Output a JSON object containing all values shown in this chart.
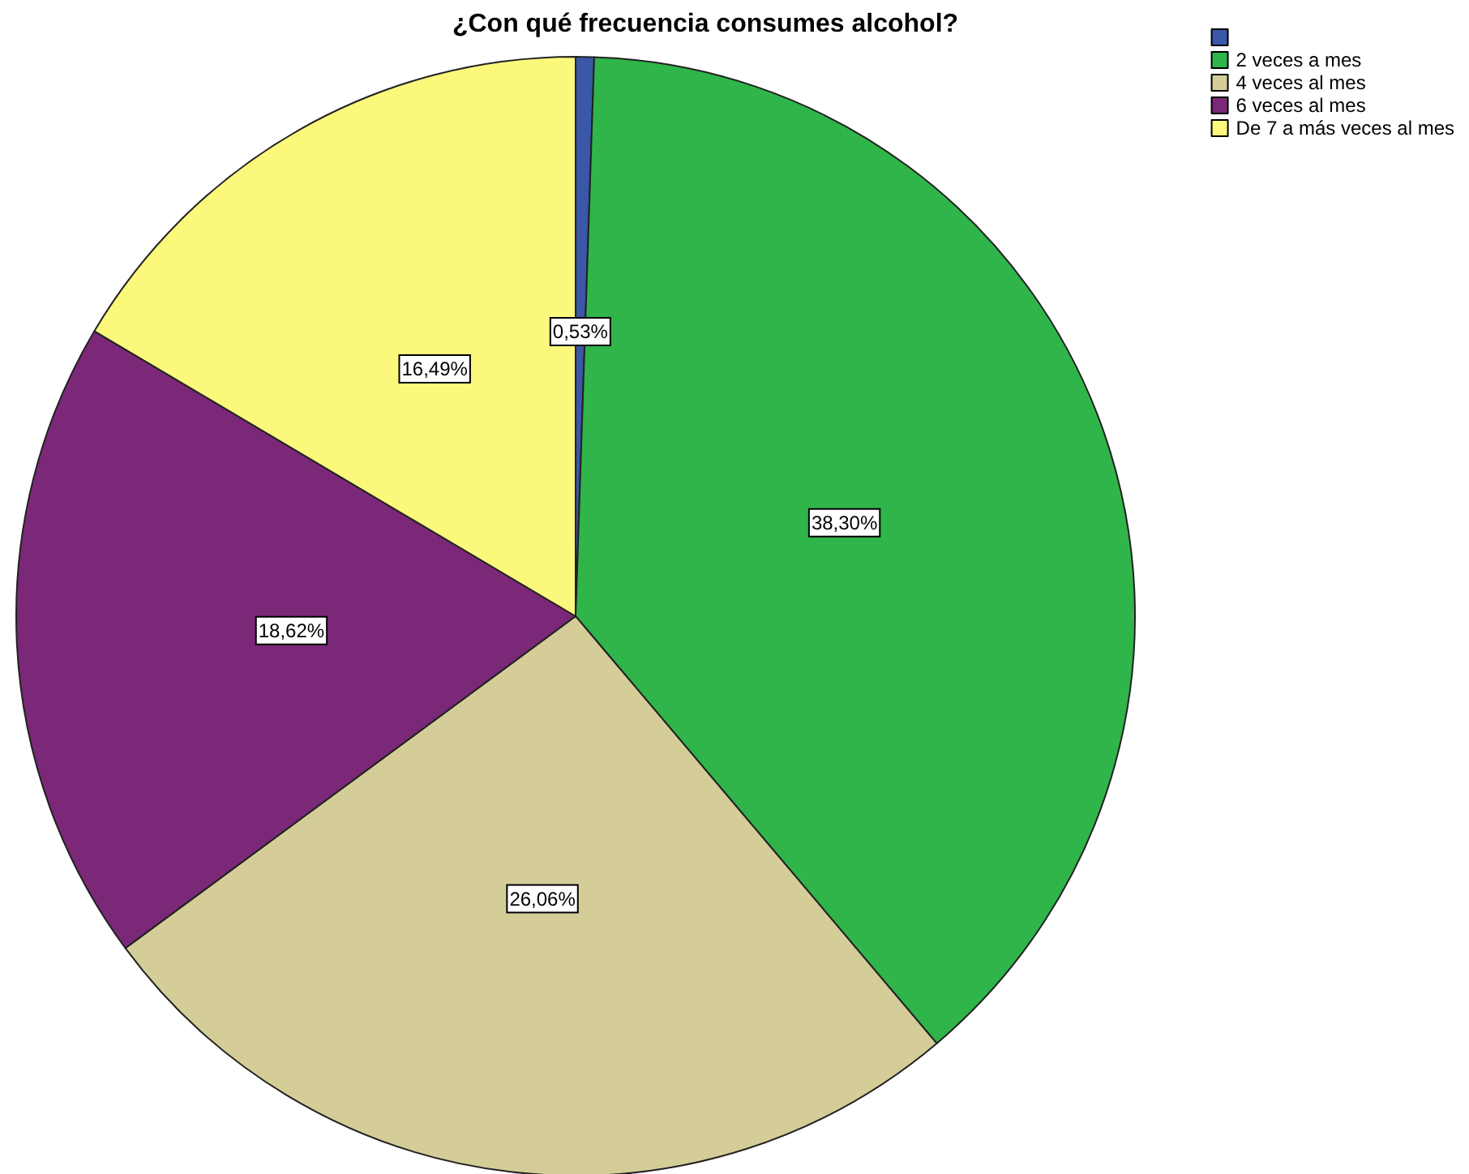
{
  "chart_data": {
    "type": "pie",
    "title": "¿Con qué frecuencia consumes alcohol?",
    "categories": [
      null,
      "2 veces a mes",
      "4 veces al mes",
      "6 veces al mes",
      "De 7 a más veces al mes"
    ],
    "values": [
      0.53,
      38.3,
      26.06,
      18.62,
      16.49
    ],
    "value_labels": [
      "0,53%",
      "38,30%",
      "26,06%",
      "18,62%",
      "16,49%"
    ],
    "colors": [
      "#3a57a8",
      "#2fb54a",
      "#d4cd98",
      "#7b2878",
      "#fbf87c"
    ],
    "legend": "top right"
  }
}
